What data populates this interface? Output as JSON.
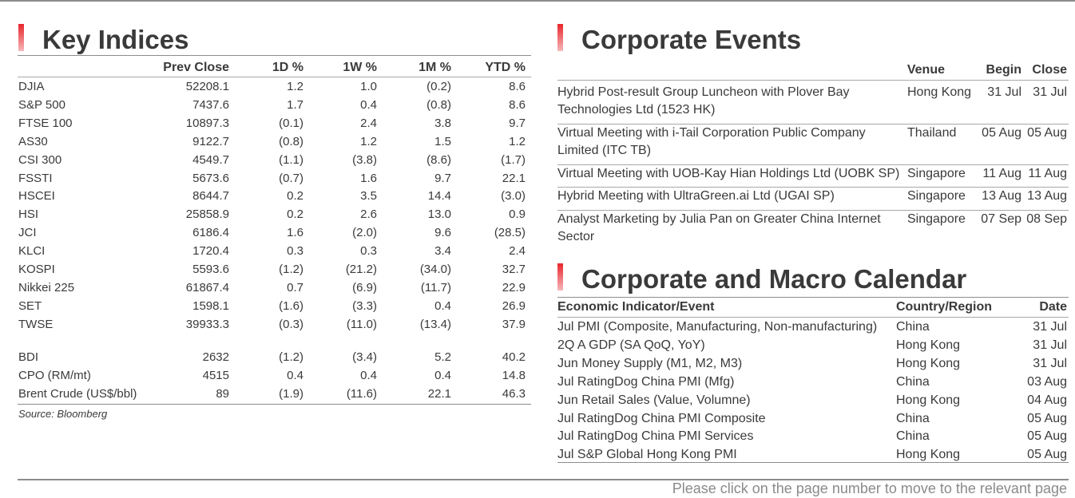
{
  "key_indices": {
    "title": "Key Indices",
    "columns": [
      "Prev Close",
      "1D %",
      "1W %",
      "1M %",
      "YTD %"
    ],
    "rows": [
      [
        "DJIA",
        "52208.1",
        "1.2",
        "1.0",
        "(0.2)",
        "8.6"
      ],
      [
        "S&P 500",
        "7437.6",
        "1.7",
        "0.4",
        "(0.8)",
        "8.6"
      ],
      [
        "FTSE 100",
        "10897.3",
        "(0.1)",
        "2.4",
        "3.8",
        "9.7"
      ],
      [
        "AS30",
        "9122.7",
        "(0.8)",
        "1.2",
        "1.5",
        "1.2"
      ],
      [
        "CSI 300",
        "4549.7",
        "(1.1)",
        "(3.8)",
        "(8.6)",
        "(1.7)"
      ],
      [
        "FSSTI",
        "5673.6",
        "(0.7)",
        "1.6",
        "9.7",
        "22.1"
      ],
      [
        "HSCEI",
        "8644.7",
        "0.2",
        "3.5",
        "14.4",
        "(3.0)"
      ],
      [
        "HSI",
        "25858.9",
        "0.2",
        "2.6",
        "13.0",
        "0.9"
      ],
      [
        "JCI",
        "6186.4",
        "1.6",
        "(2.0)",
        "9.6",
        "(28.5)"
      ],
      [
        "KLCI",
        "1720.4",
        "0.3",
        "0.3",
        "3.4",
        "2.4"
      ],
      [
        "KOSPI",
        "5593.6",
        "(1.2)",
        "(21.2)",
        "(34.0)",
        "32.7"
      ],
      [
        "Nikkei 225",
        "61867.4",
        "0.7",
        "(6.9)",
        "(11.7)",
        "22.9"
      ],
      [
        "SET",
        "1598.1",
        "(1.6)",
        "(3.3)",
        "0.4",
        "26.9"
      ],
      [
        "TWSE",
        "39933.3",
        "(0.3)",
        "(11.0)",
        "(13.4)",
        "37.9"
      ]
    ],
    "commodities": [
      [
        "BDI",
        "2632",
        "(1.2)",
        "(3.4)",
        "5.2",
        "40.2"
      ],
      [
        "CPO (RM/mt)",
        "4515",
        "0.4",
        "0.4",
        "0.4",
        "14.8"
      ],
      [
        "Brent Crude (US$/bbl)",
        "89",
        "(1.9)",
        "(11.6)",
        "22.1",
        "46.3"
      ]
    ],
    "source": "Source: Bloomberg"
  },
  "corporate_events": {
    "title": "Corporate Events",
    "columns": [
      "Venue",
      "Begin",
      "Close"
    ],
    "rows": [
      [
        "Hybrid Post-result Group Luncheon with Plover Bay Technologies Ltd (1523 HK)",
        "Hong Kong",
        "31 Jul",
        "31 Jul"
      ],
      [
        "Virtual Meeting with i-Tail Corporation Public Company Limited (ITC TB)",
        "Thailand",
        "05 Aug",
        "05 Aug"
      ],
      [
        "Virtual Meeting with UOB-Kay Hian Holdings Ltd (UOBK SP)",
        "Singapore",
        "11 Aug",
        "11 Aug"
      ],
      [
        "Hybrid Meeting with UltraGreen.ai Ltd (UGAI SP)",
        "Singapore",
        "13 Aug",
        "13 Aug"
      ],
      [
        "Analyst Marketing by Julia Pan on Greater China Internet Sector",
        "Singapore",
        "07 Sep",
        "08 Sep"
      ]
    ]
  },
  "macro_calendar": {
    "title": "Corporate and Macro Calendar",
    "columns": [
      "Economic Indicator/Event",
      "Country/Region",
      "Date"
    ],
    "rows": [
      [
        "Jul PMI (Composite, Manufacturing, Non-manufacturing)",
        "China",
        "31 Jul"
      ],
      [
        "2Q A GDP (SA QoQ, YoY)",
        "Hong Kong",
        "31 Jul"
      ],
      [
        "Jun Money Supply (M1, M2, M3)",
        "Hong Kong",
        "31 Jul"
      ],
      [
        "Jul RatingDog China PMI (Mfg)",
        "China",
        "03 Aug"
      ],
      [
        "Jun Retail Sales (Value, Volumne)",
        "Hong Kong",
        "04 Aug"
      ],
      [
        "Jul RatingDog China PMI Composite",
        "China",
        "05 Aug"
      ],
      [
        "Jul RatingDog China PMI Services",
        "China",
        "05 Aug"
      ],
      [
        "Jul S&P Global Hong Kong PMI",
        "Hong Kong",
        "05 Aug"
      ]
    ]
  },
  "footer": "Please click on the page number to move to the relevant page"
}
